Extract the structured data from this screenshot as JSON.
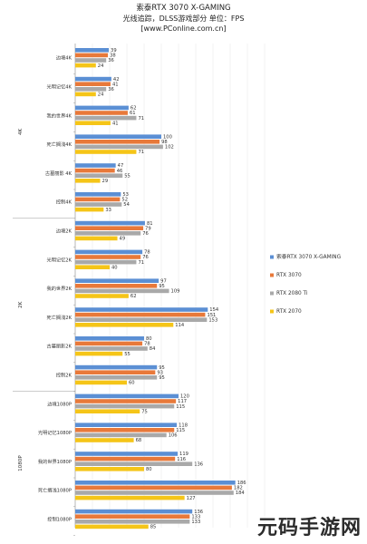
{
  "chart_data": {
    "type": "bar",
    "orientation": "horizontal",
    "title": "索泰RTX 3070 X-GAMING",
    "subtitle": "光线追踪，DLSS游戏部分  单位：FPS",
    "source": "[www.PConline.com.cn]",
    "grid": true,
    "legend_position": "right",
    "series": [
      {
        "name": "索泰RTX 3070 X-GAMING",
        "color": "#5b8fd4"
      },
      {
        "name": "RTX 3070",
        "color": "#e8793a"
      },
      {
        "name": "RTX 2080 Ti",
        "color": "#a9a9a9"
      },
      {
        "name": "RTX 2070",
        "color": "#f5c518"
      }
    ],
    "groups": [
      {
        "label": "4K",
        "categories": [
          {
            "name": "边境4K",
            "values": [
              39,
              38,
              36,
              24
            ]
          },
          {
            "name": "光明记忆4K",
            "values": [
              42,
              41,
              36,
              24
            ]
          },
          {
            "name": "我的世界4K",
            "values": [
              62,
              61,
              71,
              41
            ]
          },
          {
            "name": "死亡搁浅4K",
            "values": [
              100,
              98,
              102,
              71
            ]
          },
          {
            "name": "古墓丽影 4K",
            "values": [
              47,
              46,
              55,
              29
            ]
          },
          {
            "name": "控制4K",
            "values": [
              53,
              52,
              54,
              33
            ]
          }
        ]
      },
      {
        "label": "2K",
        "categories": [
          {
            "name": "边境2K",
            "values": [
              81,
              79,
              76,
              49
            ]
          },
          {
            "name": "光明记忆2K",
            "values": [
              78,
              76,
              71,
              40
            ]
          },
          {
            "name": "我的世界2K",
            "values": [
              97,
              95,
              109,
              62
            ]
          },
          {
            "name": "死亡搁浅2K",
            "values": [
              154,
              151,
              153,
              114
            ]
          },
          {
            "name": "古墓丽影2K",
            "values": [
              80,
              78,
              84,
              55
            ]
          },
          {
            "name": "控制2K",
            "values": [
              95,
              93,
              95,
              60
            ]
          }
        ]
      },
      {
        "label": "1080P",
        "categories": [
          {
            "name": "边境1080P",
            "values": [
              120,
              117,
              115,
              75
            ]
          },
          {
            "name": "光明记忆1080P",
            "values": [
              118,
              115,
              106,
              68
            ]
          },
          {
            "name": "我的世界1080P",
            "values": [
              119,
              116,
              136,
              80
            ]
          },
          {
            "name": "死亡搁浅1080P",
            "values": [
              186,
              182,
              184,
              127
            ]
          },
          {
            "name": "控制1080P",
            "values": [
              136,
              133,
              133,
              85
            ]
          }
        ]
      }
    ],
    "xlim": [
      0,
      220
    ]
  },
  "watermark": "元码手游网"
}
